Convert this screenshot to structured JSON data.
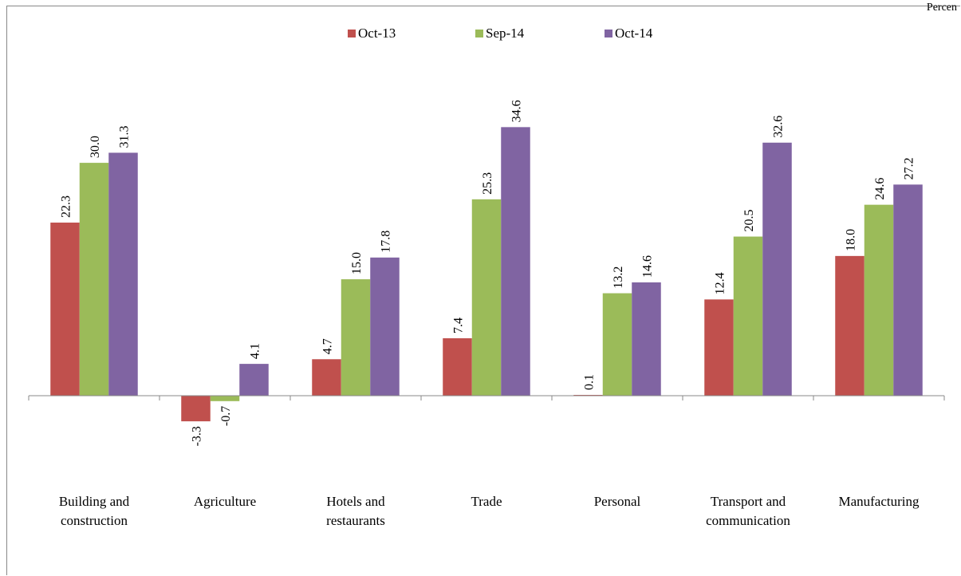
{
  "corner_label": "Percen",
  "colors": {
    "Oct-13": "#c0504d",
    "Sep-14": "#9bbb59",
    "Oct-14": "#8064a2",
    "axis": "#888888"
  },
  "chart_data": {
    "type": "bar",
    "categories": [
      [
        "Building and",
        "construction"
      ],
      [
        "Agriculture"
      ],
      [
        "Hotels and",
        "restaurants"
      ],
      [
        "Trade"
      ],
      [
        "Personal"
      ],
      [
        "Transport and",
        "communication"
      ],
      [
        "Manufacturing"
      ]
    ],
    "series": [
      {
        "name": "Oct-13",
        "values": [
          22.3,
          -3.3,
          4.7,
          7.4,
          0.1,
          12.4,
          18.0
        ]
      },
      {
        "name": "Sep-14",
        "values": [
          30.0,
          -0.7,
          15.0,
          25.3,
          13.2,
          20.5,
          24.6
        ]
      },
      {
        "name": "Oct-14",
        "values": [
          31.3,
          4.1,
          17.8,
          34.6,
          14.6,
          32.6,
          27.2
        ]
      }
    ],
    "value_labels": [
      [
        "22.3",
        "-3.3",
        "4.7",
        "7.4",
        "0.1",
        "12.4",
        "18.0"
      ],
      [
        "30.0",
        "-0.7",
        "15.0",
        "25.3",
        "13.2",
        "20.5",
        "24.6"
      ],
      [
        "31.3",
        "4.1",
        "17.8",
        "34.6",
        "14.6",
        "32.6",
        "27.2"
      ]
    ],
    "legend_position": "top",
    "grid": false,
    "ylim": [
      -5,
      40
    ]
  }
}
